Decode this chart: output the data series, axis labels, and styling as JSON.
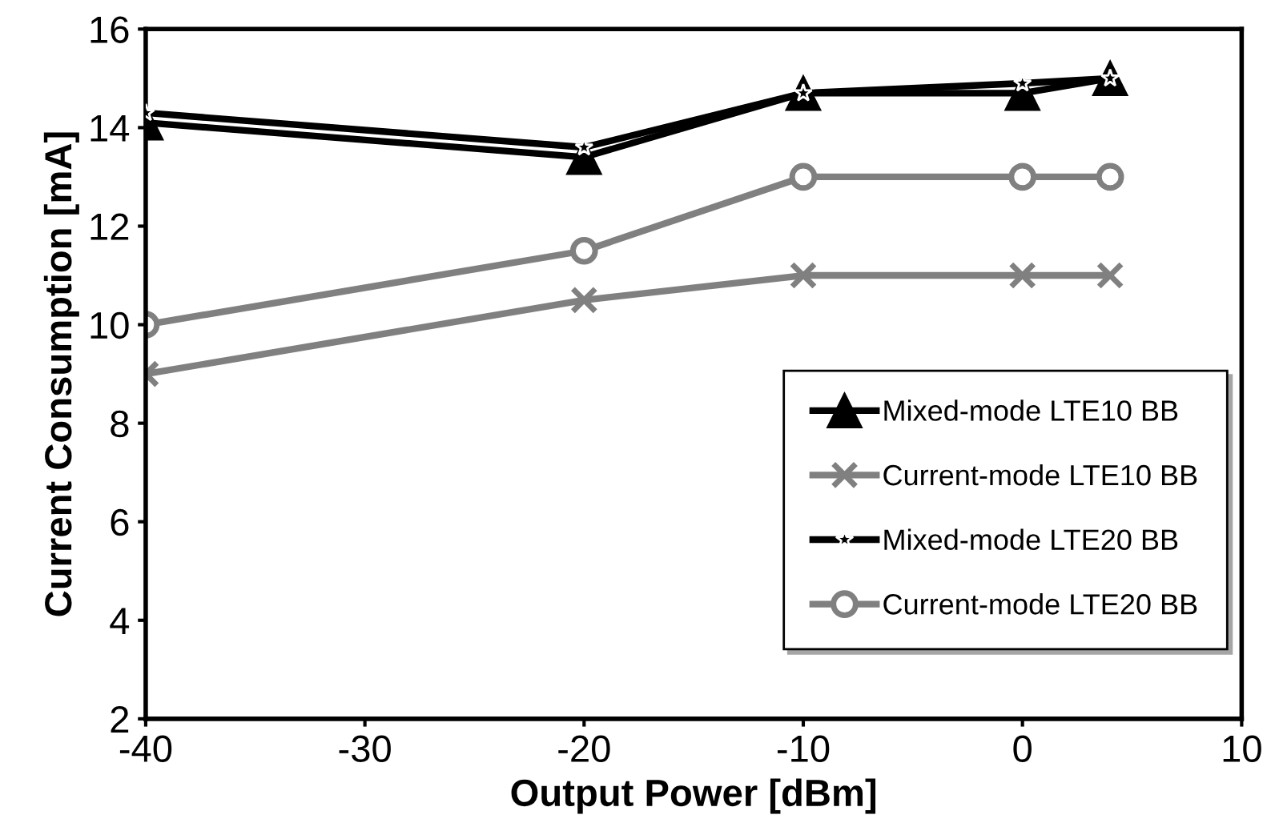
{
  "chart_data": {
    "type": "line",
    "xlabel": "Output Power [dBm]",
    "ylabel": "Current Consumption [mA]",
    "xlim": [
      -40,
      10
    ],
    "xticks": [
      -40,
      -30,
      -20,
      -10,
      0,
      10
    ],
    "ylim": [
      2,
      16
    ],
    "yticks": [
      2,
      4,
      6,
      8,
      10,
      12,
      14,
      16
    ],
    "grid": false,
    "legend": "bottom right",
    "line_style": "solid",
    "x": [
      -40,
      -20,
      -10,
      0,
      4
    ],
    "series": [
      {
        "name": "Mixed-mode LTE10 BB",
        "color": "#000000",
        "marker": "triangle",
        "values": [
          14.1,
          13.4,
          14.7,
          14.7,
          15.0
        ]
      },
      {
        "name": "Current-mode LTE10 BB",
        "color": "#808080",
        "marker": "cross",
        "values": [
          9,
          10.5,
          11,
          11,
          11
        ]
      },
      {
        "name": "Mixed-mode LTE20 BB",
        "color": "#000000",
        "marker": "star",
        "values": [
          14.3,
          13.6,
          14.7,
          14.9,
          15.0
        ]
      },
      {
        "name": "Current-mode LTE20 BB",
        "color": "#808080",
        "marker": "circle",
        "values": [
          10,
          11.5,
          13,
          13,
          13
        ]
      }
    ]
  }
}
